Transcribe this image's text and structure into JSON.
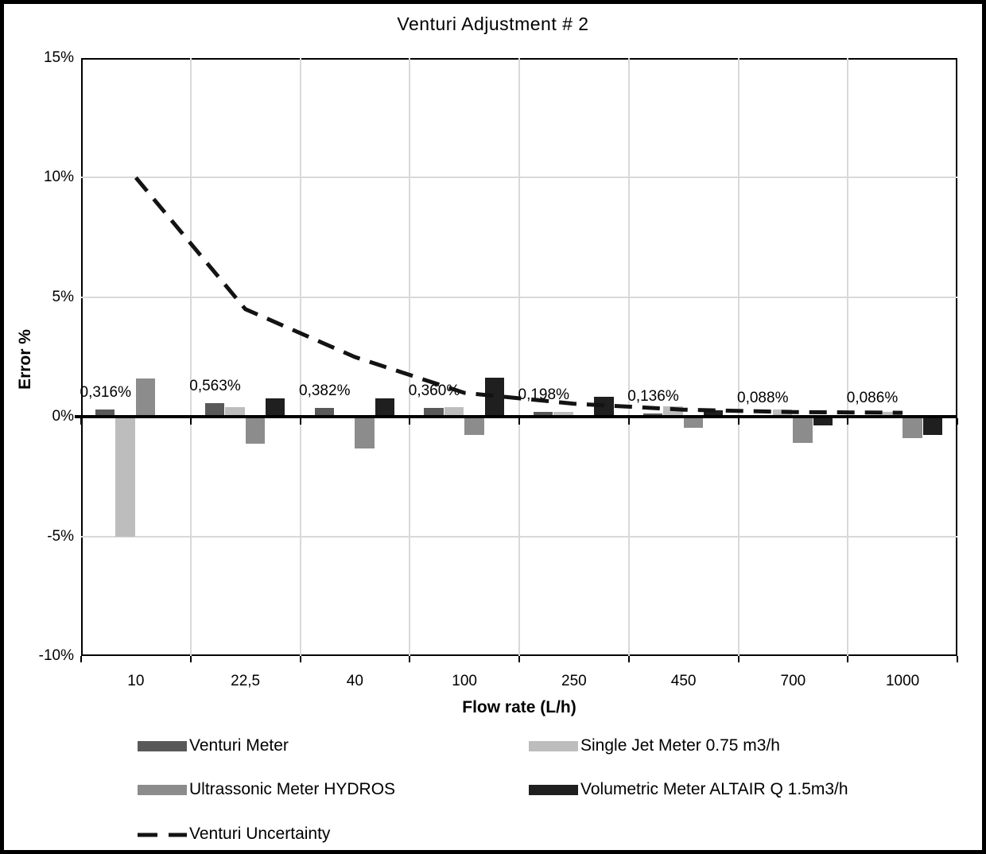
{
  "chart_data": {
    "type": "bar",
    "title": "Venturi Adjustment # 2",
    "xlabel": "Flow rate (L/h)",
    "ylabel": "Error %",
    "ylim": [
      -10,
      15
    ],
    "ytick_labels": [
      "15%",
      "10%",
      "5%",
      "0%",
      "-5%",
      "-10%"
    ],
    "ytick_values": [
      15,
      10,
      5,
      0,
      -5,
      -10
    ],
    "grid": "both",
    "legend_position": "bottom-two-columns",
    "categories": [
      "10",
      "22,5",
      "40",
      "100",
      "250",
      "450",
      "700",
      "1000"
    ],
    "series": [
      {
        "name": "Venturi Meter",
        "type": "bar",
        "color": "#595959",
        "values": [
          0.316,
          0.563,
          0.382,
          0.36,
          0.198,
          0.136,
          0.088,
          0.086
        ],
        "data_labels": [
          "0,316%",
          "0,563%",
          "0,382%",
          "0,360%",
          "0,198%",
          "0,136%",
          "0,088%",
          "0,086%"
        ]
      },
      {
        "name": "Single Jet Meter 0.75 m3/h",
        "type": "bar",
        "color": "#bdbdbd",
        "values": [
          -5.0,
          0.39,
          0,
          0.42,
          0.22,
          0.45,
          0.31,
          0.2
        ]
      },
      {
        "name": "Ultrassonic Meter HYDROS",
        "type": "bar",
        "color": "#8c8c8c",
        "values": [
          1.6,
          -1.12,
          -1.32,
          -0.75,
          0,
          -0.45,
          -1.1,
          -0.9
        ]
      },
      {
        "name": "Volumetric Meter ALTAIR Q 1.5m3/h",
        "type": "bar",
        "color": "#1f1f1f",
        "values": [
          0,
          0.78,
          0.78,
          1.65,
          0.85,
          0.28,
          -0.37,
          -0.75
        ]
      },
      {
        "name": "Venturi Uncertainty",
        "type": "line",
        "dashed": true,
        "color": "#131313",
        "values": [
          10.0,
          4.5,
          2.5,
          1.0,
          0.55,
          0.3,
          0.2,
          0.17
        ]
      }
    ]
  }
}
